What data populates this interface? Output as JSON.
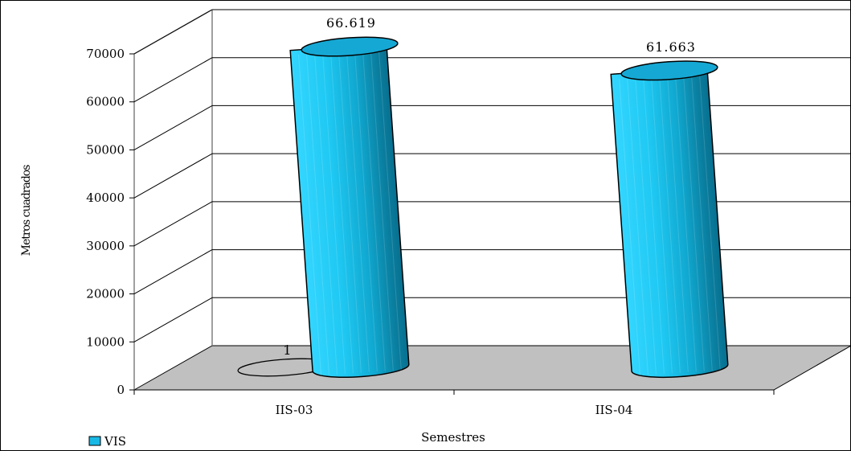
{
  "chart_data": {
    "type": "bar",
    "style": "3d-cylinder",
    "categories": [
      "IIS-03",
      "IIS-04"
    ],
    "series": [
      {
        "name": "VIS",
        "values": [
          66619,
          61663
        ],
        "data_labels": [
          "66.619",
          "61.663"
        ],
        "color": "#19B9E6"
      }
    ],
    "extra_marker": {
      "value": 1,
      "label": "1"
    },
    "xlabel": "Semestres",
    "ylabel": "Metros cuadrados",
    "ylim": [
      0,
      70000
    ],
    "yticks": [
      "0",
      "10000",
      "20000",
      "30000",
      "40000",
      "50000",
      "60000",
      "70000"
    ],
    "grid": true,
    "floor_color": "#C0C0C0",
    "legend_position": "bottom-left"
  }
}
